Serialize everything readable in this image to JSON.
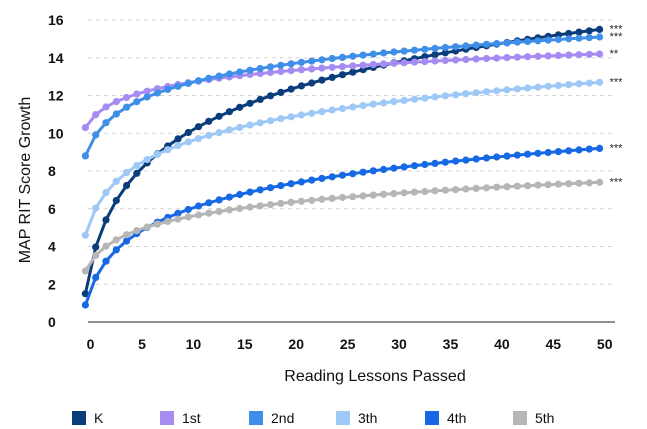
{
  "chart_data": {
    "type": "line",
    "title": "",
    "xlabel": "Reading Lessons Passed",
    "ylabel": "MAP RIT Score Growth",
    "xlim": [
      -2,
      51
    ],
    "ylim": [
      0,
      16
    ],
    "xticks": [
      "0",
      "5",
      "10",
      "15",
      "20",
      "25",
      "30",
      "35",
      "40",
      "45",
      "50"
    ],
    "yticks": [
      "0",
      "2",
      "4",
      "6",
      "8",
      "10",
      "12",
      "14",
      "16"
    ],
    "grid": "horizontal dashed",
    "legend_position": "bottom",
    "series": [
      {
        "name": "K",
        "color": "#0b3d7a",
        "start": 1.5,
        "end": 15.5,
        "significance": "***"
      },
      {
        "name": "1st",
        "color": "#a68cf2",
        "start": 10.3,
        "end": 14.2,
        "significance": "**"
      },
      {
        "name": "2nd",
        "color": "#3f8ee8",
        "start": 8.8,
        "end": 15.1,
        "significance": "***"
      },
      {
        "name": "3th",
        "color": "#9ec9f7",
        "start": 4.6,
        "end": 12.7,
        "significance": "***"
      },
      {
        "name": "4th",
        "color": "#1668e3",
        "start": 0.9,
        "end": 9.2,
        "significance": "***"
      },
      {
        "name": "5th",
        "color": "#b6b6b6",
        "start": 2.7,
        "end": 7.4,
        "significance": "***"
      }
    ]
  }
}
